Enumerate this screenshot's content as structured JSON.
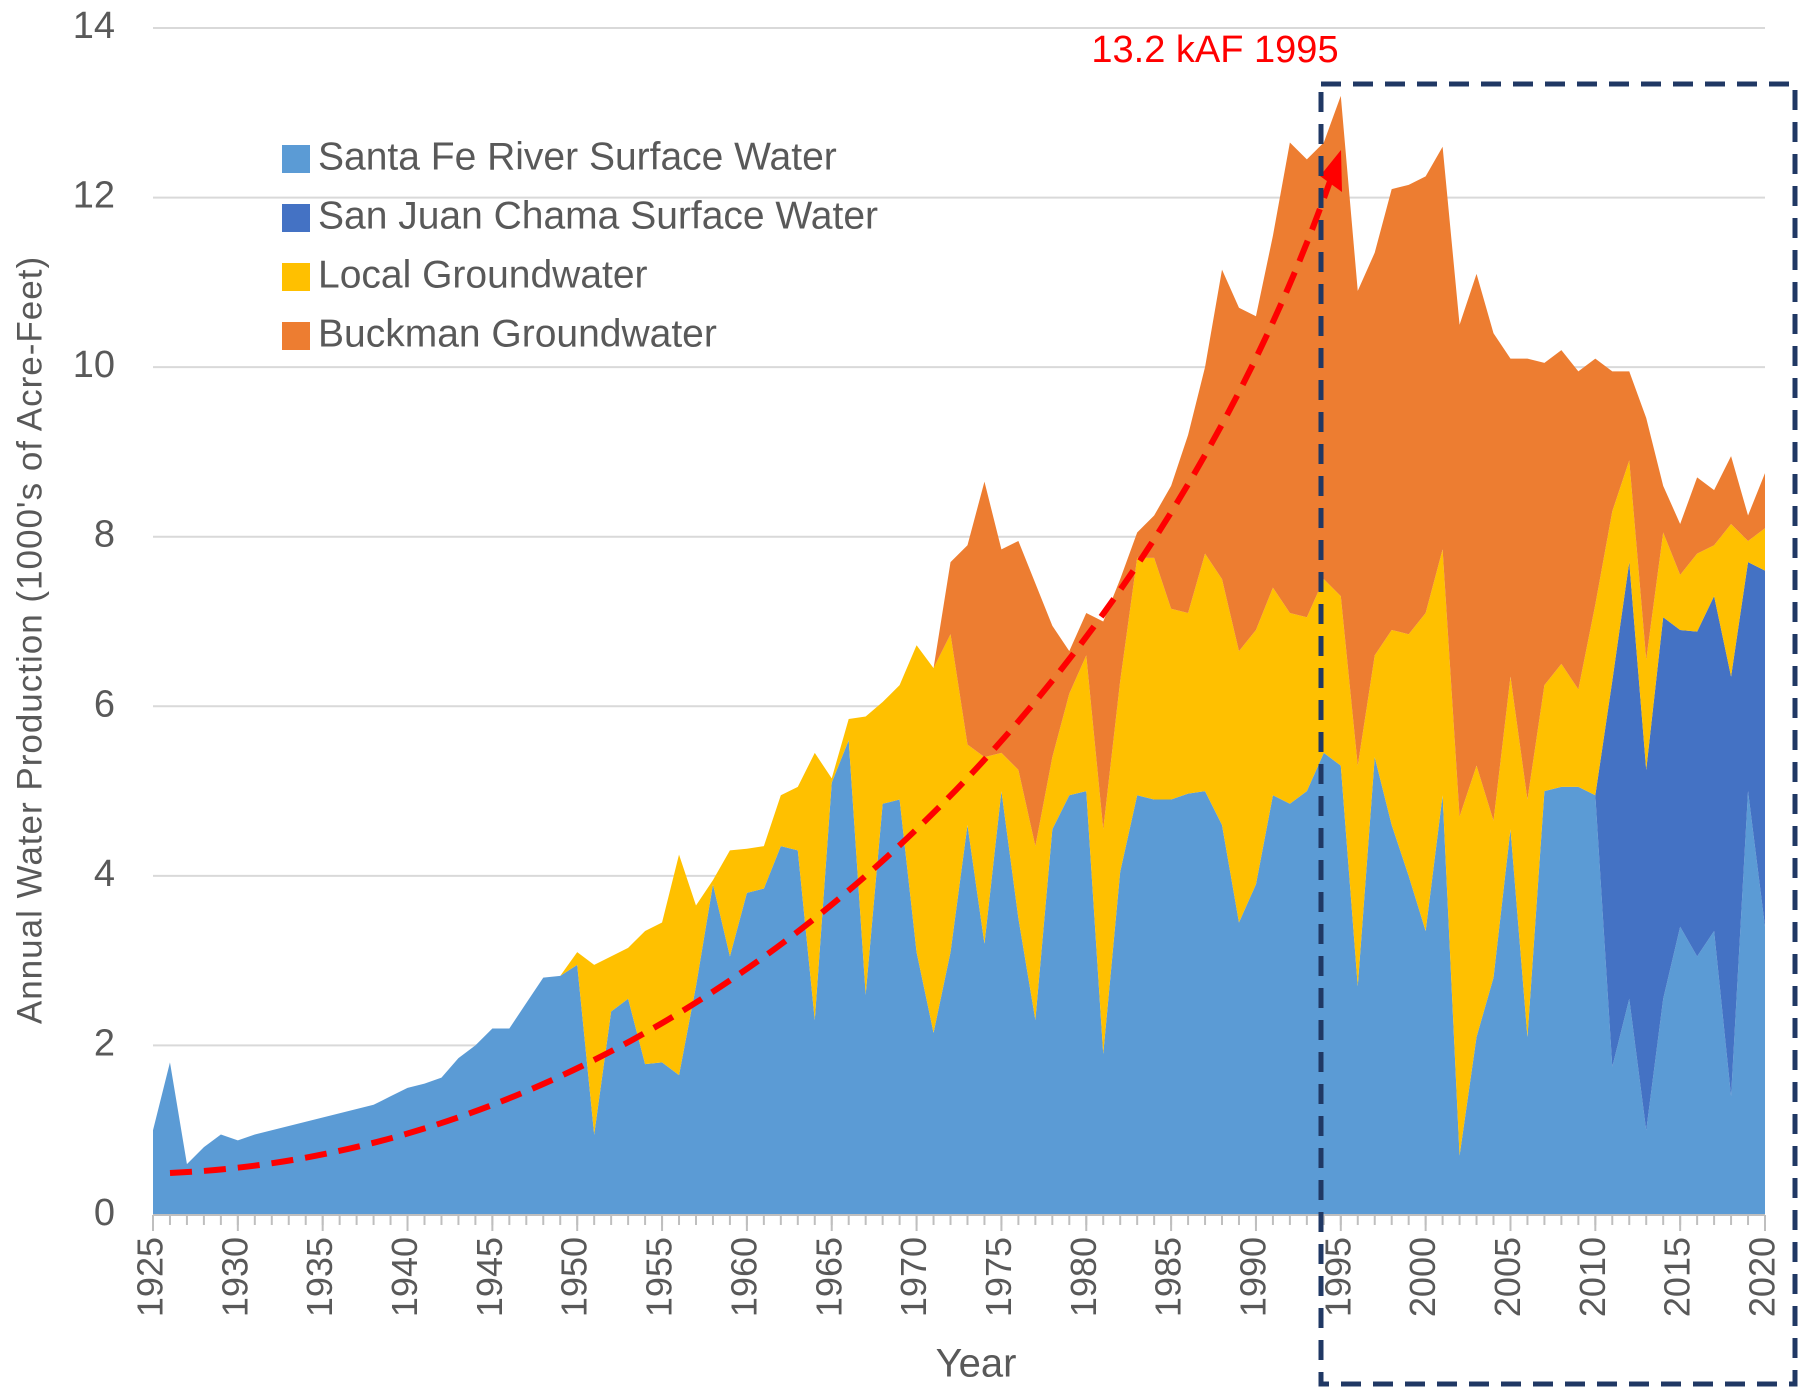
{
  "chart_data": {
    "type": "stacked_area",
    "y_axis_label": "Annual Water Production (1000's of Acre-Feet)",
    "x_axis_label": "Year",
    "annotation": "13.2 kAF 1995",
    "xlim": [
      1925,
      2020
    ],
    "xticks": [
      1925,
      1930,
      1935,
      1940,
      1945,
      1950,
      1955,
      1960,
      1965,
      1970,
      1975,
      1980,
      1985,
      1990,
      1995,
      2000,
      2005,
      2010,
      2015,
      2020
    ],
    "ylim": [
      0,
      14
    ],
    "yticks": [
      0,
      2,
      4,
      6,
      8,
      10,
      12,
      14
    ],
    "grid": true,
    "legend": "upper left",
    "x": [
      1925,
      1926,
      1927,
      1928,
      1929,
      1930,
      1931,
      1932,
      1933,
      1934,
      1935,
      1936,
      1937,
      1938,
      1939,
      1940,
      1941,
      1942,
      1943,
      1944,
      1945,
      1946,
      1947,
      1948,
      1949,
      1950,
      1951,
      1952,
      1953,
      1954,
      1955,
      1956,
      1957,
      1958,
      1959,
      1960,
      1961,
      1962,
      1963,
      1964,
      1965,
      1966,
      1967,
      1968,
      1969,
      1970,
      1971,
      1972,
      1973,
      1974,
      1975,
      1976,
      1977,
      1978,
      1979,
      1980,
      1981,
      1982,
      1983,
      1984,
      1985,
      1986,
      1987,
      1988,
      1989,
      1990,
      1991,
      1992,
      1993,
      1994,
      1995,
      1996,
      1997,
      1998,
      1999,
      2000,
      2001,
      2002,
      2003,
      2004,
      2005,
      2006,
      2007,
      2008,
      2009,
      2010,
      2011,
      2012,
      2013,
      2014,
      2015,
      2016,
      2017,
      2018,
      2019,
      2020
    ],
    "series": [
      {
        "name": "Santa Fe River Surface Water",
        "color": "#5b9bd5",
        "values": [
          1.0,
          1.8,
          0.6,
          0.8,
          0.95,
          0.88,
          0.95,
          1.0,
          1.05,
          1.1,
          1.15,
          1.2,
          1.25,
          1.3,
          1.4,
          1.5,
          1.55,
          1.62,
          1.85,
          2.0,
          2.2,
          2.2,
          2.5,
          2.8,
          2.82,
          2.95,
          0.95,
          2.4,
          2.55,
          1.78,
          1.8,
          1.65,
          2.7,
          3.9,
          3.05,
          3.8,
          3.85,
          4.35,
          4.3,
          2.3,
          5.1,
          5.6,
          2.6,
          4.85,
          4.9,
          3.1,
          2.15,
          3.1,
          4.6,
          3.2,
          5.0,
          3.5,
          2.3,
          4.55,
          4.95,
          5.0,
          1.9,
          4.05,
          4.95,
          4.9,
          4.9,
          4.97,
          5.0,
          4.6,
          3.45,
          3.9,
          4.95,
          4.85,
          5.0,
          5.45,
          5.3,
          2.7,
          5.4,
          4.6,
          4.0,
          3.35,
          4.95,
          0.7,
          2.1,
          2.8,
          4.55,
          2.1,
          5.0,
          5.05,
          5.05,
          4.95,
          1.75,
          2.55,
          1.0,
          2.55,
          3.4,
          3.05,
          3.35,
          1.4,
          5.0,
          3.4
        ]
      },
      {
        "name": "San Juan Chama Surface Water",
        "color": "#4472c4",
        "values": [
          0,
          0,
          0,
          0,
          0,
          0,
          0,
          0,
          0,
          0,
          0,
          0,
          0,
          0,
          0,
          0,
          0,
          0,
          0,
          0,
          0,
          0,
          0,
          0,
          0,
          0,
          0,
          0,
          0,
          0,
          0,
          0,
          0,
          0,
          0,
          0,
          0,
          0,
          0,
          0,
          0,
          0,
          0,
          0,
          0,
          0,
          0,
          0,
          0,
          0,
          0,
          0,
          0,
          0,
          0,
          0,
          0,
          0,
          0,
          0,
          0,
          0,
          0,
          0,
          0,
          0,
          0,
          0,
          0,
          0,
          0,
          0,
          0,
          0,
          0,
          0,
          0,
          0,
          0,
          0,
          0,
          0,
          0,
          0,
          0,
          0,
          4.55,
          5.15,
          4.25,
          4.5,
          3.5,
          3.83,
          3.95,
          4.95,
          2.7,
          4.2
        ]
      },
      {
        "name": "Local Groundwater",
        "color": "#ffc000",
        "values": [
          0,
          0,
          0,
          0,
          0,
          0,
          0,
          0,
          0,
          0,
          0,
          0,
          0,
          0,
          0,
          0,
          0,
          0,
          0,
          0,
          0,
          0,
          0,
          0,
          0,
          0.15,
          2.0,
          0.65,
          0.6,
          1.57,
          1.65,
          2.6,
          0.95,
          0.05,
          1.25,
          0.52,
          0.5,
          0.6,
          0.75,
          3.15,
          0.05,
          0.25,
          3.28,
          1.2,
          1.35,
          3.62,
          4.3,
          3.75,
          0.95,
          2.2,
          0.45,
          1.75,
          2.05,
          0.85,
          1.2,
          1.6,
          2.65,
          2.25,
          2.8,
          2.85,
          2.25,
          2.13,
          2.8,
          2.9,
          3.2,
          3.0,
          2.45,
          2.25,
          2.05,
          2.05,
          2.0,
          2.6,
          1.2,
          2.3,
          2.85,
          3.75,
          2.9,
          4.0,
          3.2,
          1.85,
          1.8,
          2.8,
          1.25,
          1.45,
          1.15,
          2.25,
          2.0,
          1.2,
          1.3,
          1.0,
          0.65,
          0.92,
          0.6,
          1.8,
          0.25,
          0.5
        ]
      },
      {
        "name": "Buckman Groundwater",
        "color": "#ed7d31",
        "values": [
          0,
          0,
          0,
          0,
          0,
          0,
          0,
          0,
          0,
          0,
          0,
          0,
          0,
          0,
          0,
          0,
          0,
          0,
          0,
          0,
          0,
          0,
          0,
          0,
          0,
          0,
          0,
          0,
          0,
          0,
          0,
          0,
          0,
          0,
          0,
          0,
          0,
          0,
          0,
          0,
          0,
          0,
          0,
          0,
          0,
          0,
          0,
          0.85,
          2.35,
          3.25,
          2.4,
          2.7,
          3.1,
          1.55,
          0.5,
          0.5,
          2.45,
          1.2,
          0.3,
          0.5,
          1.45,
          2.1,
          2.2,
          3.65,
          4.05,
          3.7,
          4.15,
          5.55,
          5.4,
          5.15,
          5.9,
          5.6,
          4.75,
          5.2,
          5.3,
          5.15,
          4.75,
          5.8,
          5.8,
          5.75,
          3.75,
          5.2,
          3.8,
          3.7,
          3.75,
          2.9,
          1.65,
          1.05,
          2.85,
          0.55,
          0.6,
          0.9,
          0.65,
          0.8,
          0.3,
          0.65
        ]
      }
    ]
  }
}
